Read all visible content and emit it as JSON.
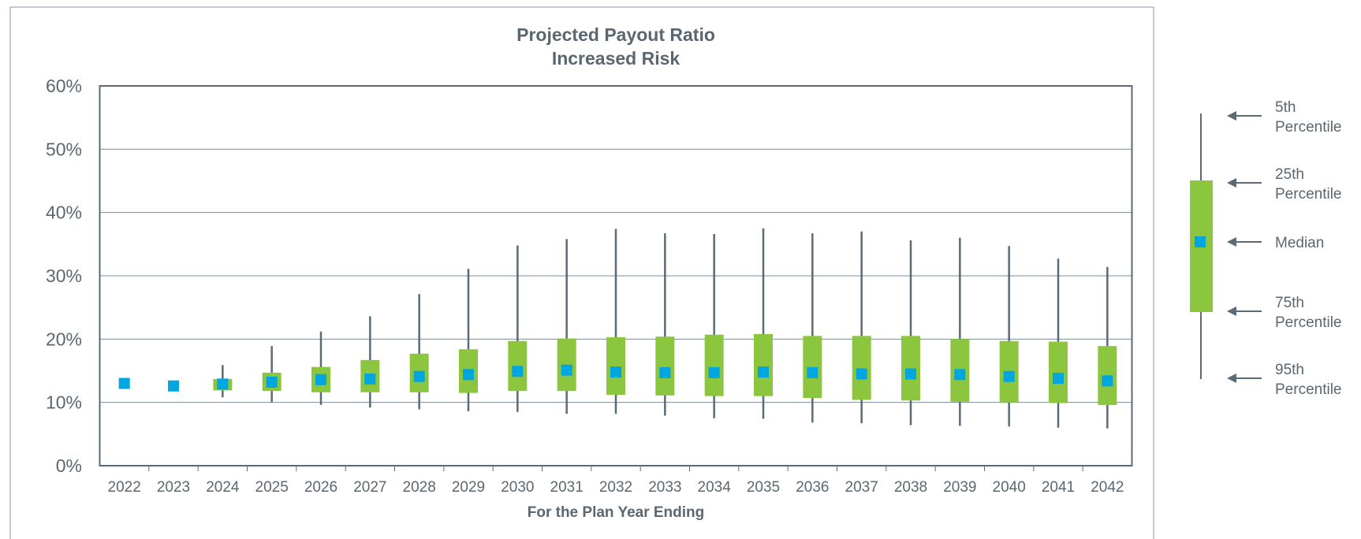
{
  "chart_data": {
    "type": "box",
    "title": [
      "Projected Payout Ratio",
      "Increased Risk"
    ],
    "x_label": "For the Plan Year Ending",
    "categories": [
      "2022",
      "2023",
      "2024",
      "2025",
      "2026",
      "2027",
      "2028",
      "2029",
      "2030",
      "2031",
      "2032",
      "2033",
      "2034",
      "2035",
      "2036",
      "2037",
      "2038",
      "2039",
      "2040",
      "2041",
      "2042"
    ],
    "series": [
      {
        "name": "5th Percentile",
        "color": "#5a6b78",
        "values": [
          null,
          null,
          15.9,
          18.9,
          21.2,
          23.6,
          27.1,
          31.1,
          34.8,
          35.8,
          37.4,
          36.7,
          36.6,
          37.5,
          36.7,
          37.0,
          35.6,
          36.0,
          34.7,
          32.7,
          31.4
        ]
      },
      {
        "name": "25th Percentile",
        "color": "#8cc63f",
        "values": [
          null,
          null,
          13.7,
          14.7,
          15.6,
          16.7,
          17.7,
          18.4,
          19.7,
          20.1,
          20.3,
          20.4,
          20.7,
          20.8,
          20.5,
          20.5,
          20.5,
          20.0,
          19.7,
          19.6,
          18.9
        ]
      },
      {
        "name": "Median",
        "color": "#00a6e0",
        "values": [
          13.0,
          12.6,
          12.9,
          13.2,
          13.6,
          13.7,
          14.1,
          14.4,
          14.9,
          15.1,
          14.8,
          14.7,
          14.7,
          14.8,
          14.7,
          14.5,
          14.5,
          14.4,
          14.1,
          13.8,
          13.4
        ]
      },
      {
        "name": "75th Percentile",
        "color": "#8cc63f",
        "values": [
          null,
          null,
          11.9,
          11.8,
          11.6,
          11.6,
          11.6,
          11.5,
          11.8,
          11.8,
          11.2,
          11.1,
          11.0,
          11.0,
          10.7,
          10.4,
          10.3,
          10.1,
          10.0,
          9.9,
          9.6
        ]
      },
      {
        "name": "95th Percentile",
        "color": "#5a6b78",
        "values": [
          null,
          null,
          10.8,
          10.0,
          9.6,
          9.2,
          8.9,
          8.6,
          8.5,
          8.2,
          8.2,
          7.9,
          7.5,
          7.4,
          6.8,
          6.7,
          6.4,
          6.3,
          6.2,
          6.0,
          5.9
        ]
      }
    ],
    "ylim": [
      0,
      60
    ],
    "yticks": [
      {
        "value": 0,
        "label": "0%"
      },
      {
        "value": 10,
        "label": "10%"
      },
      {
        "value": 20,
        "label": "20%"
      },
      {
        "value": 30,
        "label": "30%"
      },
      {
        "value": 40,
        "label": "40%"
      },
      {
        "value": 50,
        "label": "50%"
      },
      {
        "value": 60,
        "label": "60%"
      }
    ],
    "grid": true
  }
}
